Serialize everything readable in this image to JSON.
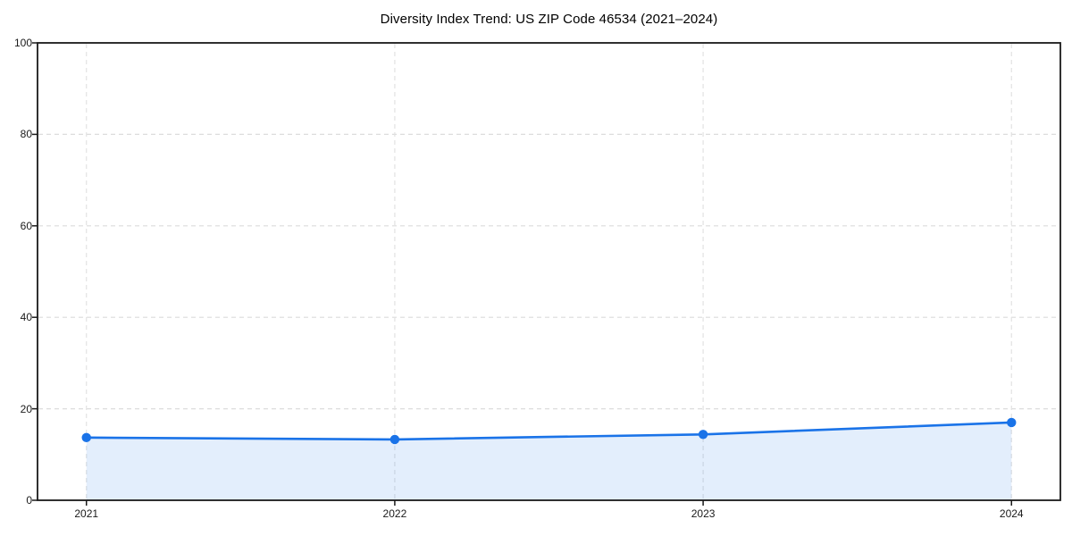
{
  "chart_data": {
    "type": "area",
    "title": "Diversity Index Trend: US ZIP Code 46534 (2021–2024)",
    "categories": [
      "2021",
      "2022",
      "2023",
      "2024"
    ],
    "series": [
      {
        "name": "Diversity Index",
        "values": [
          13.7,
          13.3,
          14.4,
          17.0
        ]
      }
    ],
    "xlabel": "",
    "ylabel": "",
    "ylim": [
      0,
      100
    ],
    "yticks": [
      0,
      20,
      40,
      60,
      80,
      100
    ],
    "grid": true,
    "grid_style": "dashed",
    "legend_position": "none",
    "colors": {
      "line": "#1a73e8",
      "fill": "rgba(26,115,232,0.12)",
      "grid_y": "#dcdcdc",
      "grid_x": "#e2e2e2",
      "axis": "#1a1a1a",
      "tick_text": "#1a1a1a",
      "background": "#ffffff"
    }
  }
}
